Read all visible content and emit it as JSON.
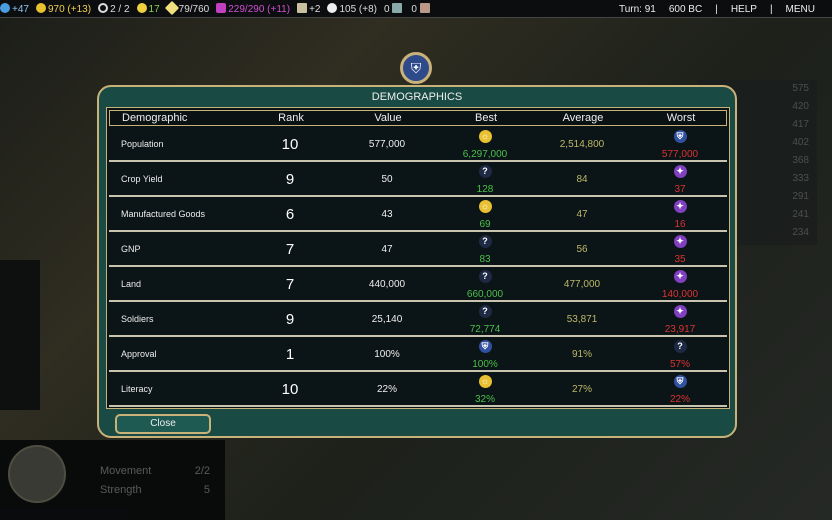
{
  "topbar": {
    "science": "+47",
    "gold": "970 (+13)",
    "trade_routes": "2 / 2",
    "happiness": "17",
    "golden_age": "79/760",
    "culture": "229/290 (+11)",
    "tourism": "+2",
    "faith": "105 (+8)",
    "spies": "0",
    "great_works": "0",
    "turn": "Turn: 91",
    "year": "600 BC",
    "help": "HELP",
    "menu": "MENU"
  },
  "colors": {
    "accent": "#1a4a44",
    "border": "#c8b27a",
    "best": "#4cc04c",
    "worst": "#dd3333",
    "average": "#bdb86a"
  },
  "scores": [
    575,
    420,
    417,
    402,
    368,
    333,
    291,
    241,
    234
  ],
  "unit": {
    "movement_label": "Movement",
    "movement": "2/2",
    "strength_label": "Strength",
    "strength": "5"
  },
  "dialog": {
    "title": "DEMOGRAPHICS",
    "headers": [
      "Demographic",
      "Rank",
      "Value",
      "Best",
      "Average",
      "Worst"
    ],
    "rows": [
      {
        "name": "Population",
        "rank": "10",
        "value": "577,000",
        "best": "6,297,000",
        "best_icon": "yellow",
        "average": "2,514,800",
        "worst": "577,000",
        "worst_icon": "blue"
      },
      {
        "name": "Crop Yield",
        "rank": "9",
        "value": "50",
        "best": "128",
        "best_icon": "unknown",
        "average": "84",
        "worst": "37",
        "worst_icon": "purple"
      },
      {
        "name": "Manufactured Goods",
        "rank": "6",
        "value": "43",
        "best": "69",
        "best_icon": "yellow",
        "average": "47",
        "worst": "16",
        "worst_icon": "purple"
      },
      {
        "name": "GNP",
        "rank": "7",
        "value": "47",
        "best": "83",
        "best_icon": "unknown",
        "average": "56",
        "worst": "35",
        "worst_icon": "purple"
      },
      {
        "name": "Land",
        "rank": "7",
        "value": "440,000",
        "best": "660,000",
        "best_icon": "unknown",
        "average": "477,000",
        "worst": "140,000",
        "worst_icon": "purple"
      },
      {
        "name": "Soldiers",
        "rank": "9",
        "value": "25,140",
        "best": "72,774",
        "best_icon": "unknown",
        "average": "53,871",
        "worst": "23,917",
        "worst_icon": "purple"
      },
      {
        "name": "Approval",
        "rank": "1",
        "value": "100%",
        "best": "100%",
        "best_icon": "blue",
        "average": "91%",
        "worst": "57%",
        "worst_icon": "unknown"
      },
      {
        "name": "Literacy",
        "rank": "10",
        "value": "22%",
        "best": "32%",
        "best_icon": "yellow",
        "average": "27%",
        "worst": "22%",
        "worst_icon": "blue"
      }
    ],
    "close_label": "Close"
  }
}
